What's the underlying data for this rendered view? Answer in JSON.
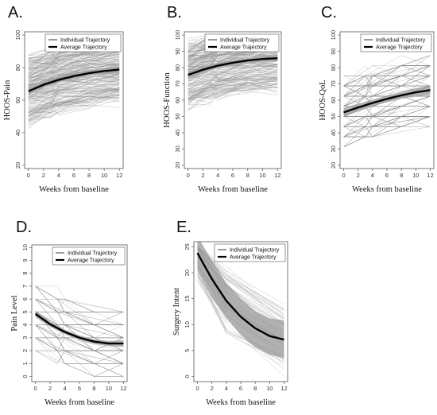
{
  "chart_data": [
    {
      "panel": "A.",
      "type": "line",
      "xlabel": "Weeks from baseline",
      "ylabel": "HOOS-Pain",
      "xticks": [
        0,
        2,
        4,
        6,
        8,
        10,
        12
      ],
      "yticks": [
        20,
        40,
        60,
        80,
        100
      ],
      "xlim": [
        -0.5,
        12.5
      ],
      "ylim": [
        18,
        102
      ],
      "legend": [
        "Individual Trajectory",
        "Average Trajectory"
      ],
      "legend_position": "top-right",
      "average_trajectory": {
        "x": [
          0,
          2,
          4,
          6,
          8,
          10,
          12
        ],
        "y": [
          65.5,
          69.5,
          72.5,
          74.8,
          76.6,
          77.9,
          78.8
        ]
      },
      "ci_halfwidth": [
        2.2,
        1.8,
        1.6,
        1.6,
        1.7,
        1.9,
        2.2
      ],
      "individual_trajectories": {
        "count": 220,
        "visit_weeks": [
          0,
          3,
          4,
          8,
          12
        ],
        "range": [
          28,
          100
        ]
      }
    },
    {
      "panel": "B.",
      "type": "line",
      "xlabel": "Weeks from baseline",
      "ylabel": "HOOS-Function",
      "xticks": [
        0,
        2,
        4,
        6,
        8,
        10,
        12
      ],
      "yticks": [
        20,
        30,
        40,
        50,
        60,
        70,
        80,
        90,
        100
      ],
      "xlim": [
        -0.5,
        12.5
      ],
      "ylim": [
        18,
        102
      ],
      "legend": [
        "Individual Trajectory",
        "Average Trajectory"
      ],
      "legend_position": "top-right",
      "average_trajectory": {
        "x": [
          0,
          2,
          4,
          6,
          8,
          10,
          12
        ],
        "y": [
          75.5,
          78.7,
          81.2,
          83.0,
          84.4,
          85.3,
          85.8
        ]
      },
      "ci_halfwidth": [
        2.0,
        1.6,
        1.4,
        1.4,
        1.5,
        1.7,
        2.0
      ],
      "individual_trajectories": {
        "count": 220,
        "visit_weeks": [
          0,
          3,
          4,
          8,
          12
        ],
        "range": [
          30,
          100
        ]
      }
    },
    {
      "panel": "C.",
      "type": "line",
      "xlabel": "Weeks from baseline",
      "ylabel": "HOOS-QoL",
      "xticks": [
        0,
        2,
        4,
        6,
        8,
        10,
        12
      ],
      "yticks": [
        20,
        30,
        40,
        50,
        60,
        70,
        80,
        90,
        100
      ],
      "xlim": [
        -0.5,
        12.5
      ],
      "ylim": [
        18,
        102
      ],
      "legend": [
        "Individual Trajectory",
        "Average Trajectory"
      ],
      "legend_position": "top-right",
      "average_trajectory": {
        "x": [
          0,
          2,
          4,
          6,
          8,
          10,
          12
        ],
        "y": [
          52.5,
          55.5,
          58.3,
          60.8,
          63.0,
          64.8,
          66.2
        ]
      },
      "ci_halfwidth": [
        2.8,
        2.3,
        2.0,
        2.0,
        2.2,
        2.5,
        2.9
      ],
      "individual_trajectories": {
        "count": 220,
        "visit_weeks": [
          0,
          3,
          4,
          8,
          12
        ],
        "levels": [
          25,
          31.25,
          37.5,
          43.75,
          50,
          56.25,
          62.5,
          68.75,
          75,
          81.25,
          87.5,
          93.75,
          100
        ]
      }
    },
    {
      "panel": "D.",
      "type": "line",
      "xlabel": "Weeks from baseline",
      "ylabel": "Pain Level",
      "xticks": [
        0,
        2,
        4,
        6,
        8,
        10,
        12
      ],
      "yticks": [
        0,
        1,
        2,
        3,
        4,
        5,
        6,
        7,
        8,
        9,
        10
      ],
      "xlim": [
        -0.5,
        12.5
      ],
      "ylim": [
        -0.4,
        10.2
      ],
      "legend": [
        "Individual Trajectory",
        "Average Trajectory"
      ],
      "legend_position": "top-right",
      "average_trajectory": {
        "x": [
          0,
          2,
          4,
          6,
          8,
          10,
          12
        ],
        "y": [
          4.85,
          4.05,
          3.45,
          3.0,
          2.7,
          2.55,
          2.55
        ]
      },
      "ci_halfwidth": [
        0.25,
        0.2,
        0.18,
        0.18,
        0.18,
        0.2,
        0.25
      ],
      "individual_trajectories": {
        "count": 160,
        "visit_weeks": [
          0,
          3,
          4,
          8,
          12
        ],
        "levels": [
          0,
          1,
          2,
          3,
          4,
          5,
          6,
          7,
          8
        ]
      }
    },
    {
      "panel": "E.",
      "type": "line",
      "xlabel": "Weeks from baseline",
      "ylabel": "Surgery Intent",
      "xticks": [
        0,
        2,
        4,
        6,
        8,
        10,
        12
      ],
      "yticks": [
        0,
        5,
        10,
        15,
        20,
        25
      ],
      "xlim": [
        -0.5,
        12.5
      ],
      "ylim": [
        -1,
        26
      ],
      "legend": [
        "Individual Trajectory",
        "Average Trajectory"
      ],
      "legend_position": "top-right",
      "average_trajectory": {
        "x": [
          0,
          2,
          4,
          6,
          8,
          10,
          12
        ],
        "y": [
          23.8,
          18.8,
          14.6,
          11.5,
          9.3,
          7.8,
          7.1
        ]
      },
      "ci_lower": [
        20.5,
        15.2,
        11.3,
        8.0,
        5.6,
        4.2,
        3.5
      ],
      "ci_upper": [
        27.0,
        22.4,
        18.0,
        15.0,
        12.6,
        11.2,
        10.8
      ],
      "individual_trajectories": {
        "count": 70,
        "visit_weeks": [
          0,
          4,
          12
        ],
        "range": [
          0,
          25
        ]
      }
    }
  ]
}
